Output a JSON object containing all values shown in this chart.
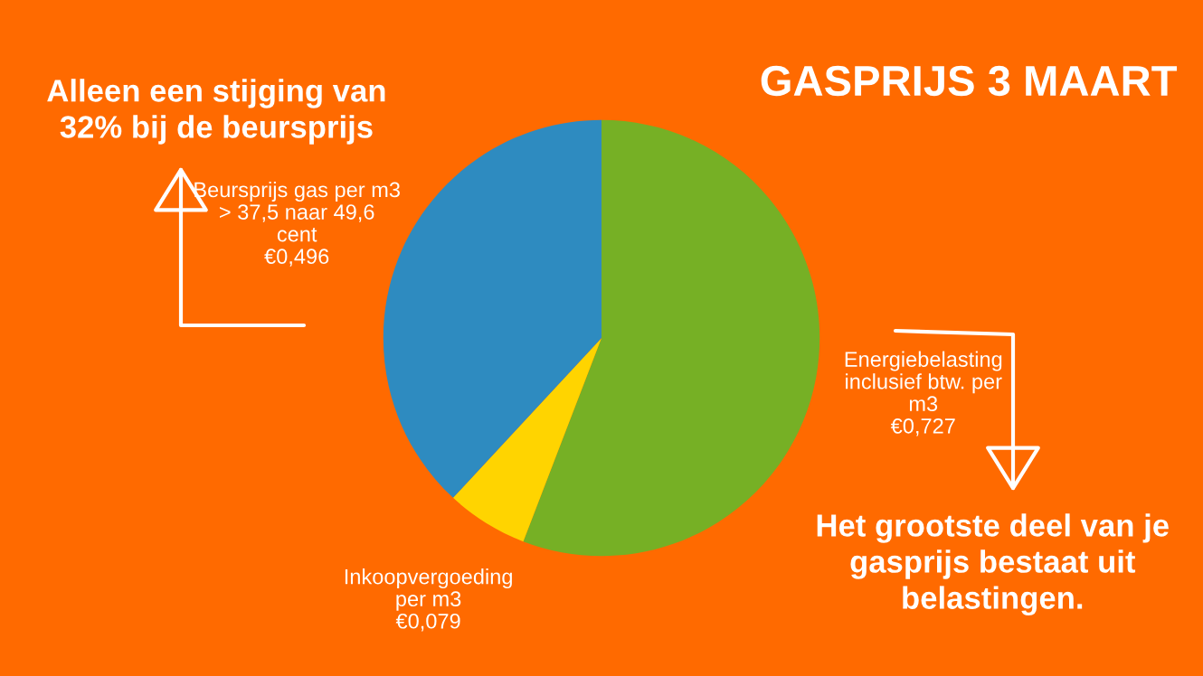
{
  "chart_data": {
    "type": "pie",
    "title": "GASPRIJS 3 MAART",
    "categories": [
      "Energiebelasting\ninclusief btw. per\nm3",
      "Inkoopvergoeding\nper m3",
      "Beursprijs gas per m3\n> 37,5 naar 49,6\ncent"
    ],
    "values": [
      0.727,
      0.079,
      0.496
    ],
    "value_labels": [
      "€0,727",
      "€0,079",
      "€0,496"
    ],
    "colors": [
      "#76b025",
      "#ffd400",
      "#2e8bc0"
    ],
    "annotations": [
      "Alleen een stijging van\n32% bij de beursprijs",
      "Het grootste deel van je\ngasprijs bestaat uit\nbelastingen."
    ]
  }
}
